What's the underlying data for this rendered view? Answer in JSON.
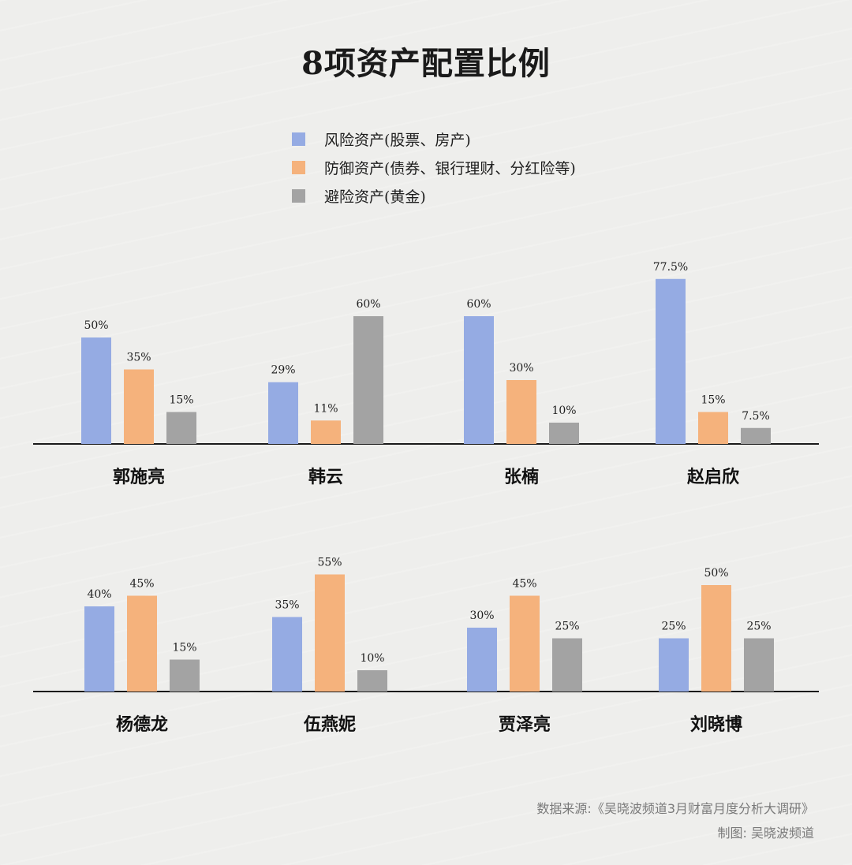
{
  "title": "8项资产配置比例",
  "colors": {
    "risk": "#95abe3",
    "defense": "#f5b27c",
    "hedge": "#a3a3a3"
  },
  "footer": {
    "source": "数据来源:《吴晓波频道3月财富月度分析大调研》",
    "credit": "制图: 吴晓波频道"
  },
  "chart_data": {
    "type": "bar",
    "legend": [
      "风险资产(股票、房产)",
      "防御资产(债券、银行理财、分红险等)",
      "避险资产(黄金)"
    ],
    "categories": [
      "郭施亮",
      "韩云",
      "张楠",
      "赵启欣",
      "杨德龙",
      "伍燕妮",
      "贾泽亮",
      "刘晓博"
    ],
    "series": [
      {
        "name": "风险资产(股票、房产)",
        "values": [
          50,
          29,
          60,
          77.5,
          40,
          35,
          30,
          25
        ],
        "labels": [
          "50%",
          "29%",
          "60%",
          "77.5%",
          "40%",
          "35%",
          "30%",
          "25%"
        ]
      },
      {
        "name": "防御资产(债券、银行理财、分红险等)",
        "values": [
          35,
          11,
          30,
          15,
          45,
          55,
          45,
          50
        ],
        "labels": [
          "35%",
          "11%",
          "30%",
          "15%",
          "45%",
          "55%",
          "45%",
          "50%"
        ]
      },
      {
        "name": "避险资产(黄金)",
        "values": [
          15,
          60,
          10,
          7.5,
          15,
          10,
          25,
          25
        ],
        "labels": [
          "15%",
          "60%",
          "10%",
          "7.5%",
          "15%",
          "10%",
          "25%",
          "25%"
        ]
      }
    ],
    "ylim": [
      0,
      100
    ],
    "grid": false,
    "legend_position": "top-center"
  }
}
